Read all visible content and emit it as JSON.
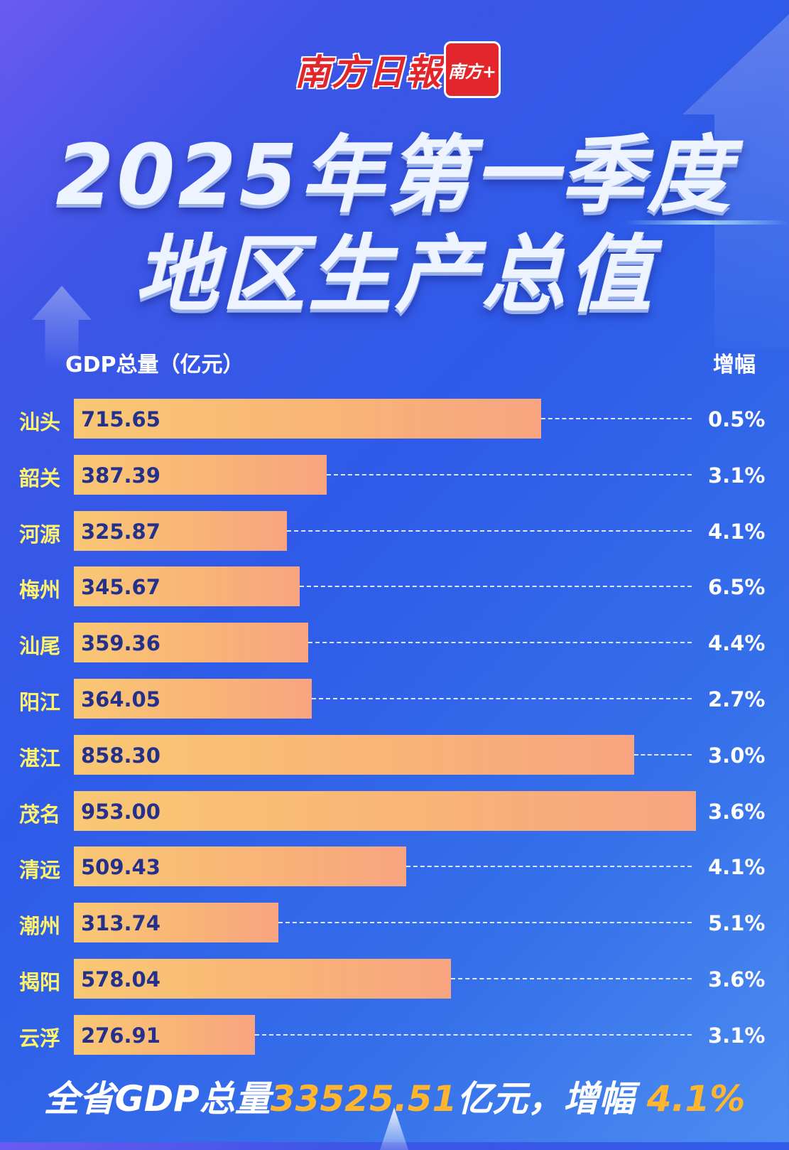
{
  "header": {
    "brand": "南方日報",
    "badge": "南方+",
    "title_line1": "2025年第一季度",
    "title_line2": "地区生产总值"
  },
  "chart_data": {
    "type": "bar",
    "orientation": "horizontal",
    "xlabel": "GDP总量（亿元）",
    "growth_label": "增幅",
    "categories": [
      "汕头",
      "韶关",
      "河源",
      "梅州",
      "汕尾",
      "阳江",
      "湛江",
      "茂名",
      "清远",
      "潮州",
      "揭阳",
      "云浮"
    ],
    "values": [
      715.65,
      387.39,
      325.87,
      345.67,
      359.36,
      364.05,
      858.3,
      953.0,
      509.43,
      313.74,
      578.04,
      276.91
    ],
    "value_labels": [
      "715.65",
      "387.39",
      "325.87",
      "345.67",
      "359.36",
      "364.05",
      "858.30",
      "953.00",
      "509.43",
      "313.74",
      "578.04",
      "276.91"
    ],
    "growth": [
      "0.5%",
      "3.1%",
      "4.1%",
      "6.5%",
      "4.4%",
      "2.7%",
      "3.0%",
      "3.6%",
      "4.1%",
      "5.1%",
      "3.6%",
      "3.1%"
    ],
    "bar_color": "#f9b476",
    "label_color": "#fff36a",
    "value_color": "#23308c"
  },
  "summary": {
    "prefix": "全省GDP总量",
    "total": "33525.51",
    "mid": "亿元，增幅 ",
    "rate": "4.1%"
  }
}
